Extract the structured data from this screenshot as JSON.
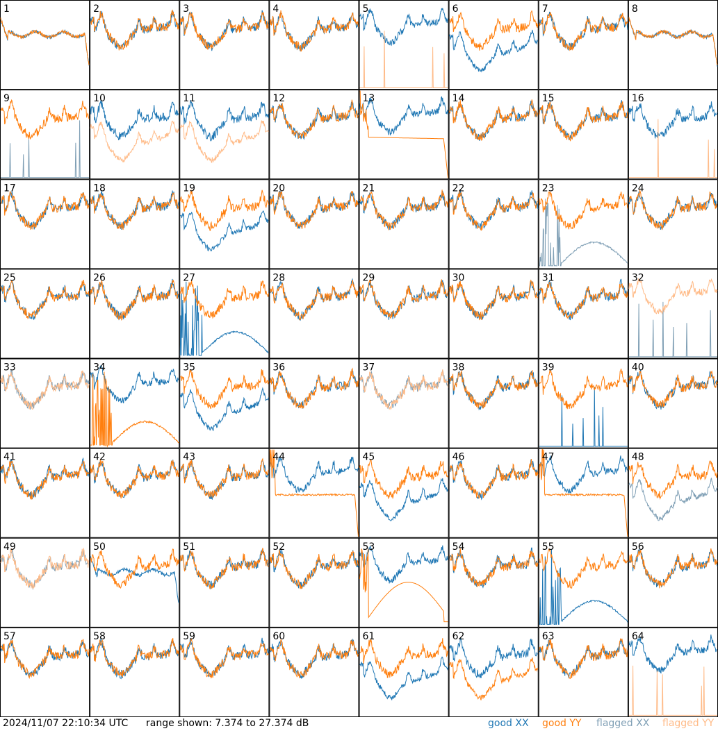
{
  "footer": {
    "timestamp": "2024/11/07 22:10:34 UTC",
    "range_text": "range shown: 7.374 to 27.374 dB",
    "legend": {
      "good_xx": "good XX",
      "good_yy": "good YY",
      "flagged_xx": "flagged XX",
      "flagged_yy": "flagged YY"
    }
  },
  "colors": {
    "good_xx": "#1f77b4",
    "good_yy": "#ff7f0e",
    "flagged_xx": "#7f9fb5",
    "flagged_yy": "#ffbb88",
    "grid_line": "#000000"
  },
  "chart_data": {
    "type": "line",
    "grid": {
      "rows": 8,
      "cols": 8
    },
    "ylim": [
      7.374,
      27.374
    ],
    "y_unit": "dB",
    "tiles": [
      {
        "id": "1",
        "xx": {
          "pattern": "flat",
          "flag": false
        },
        "yy": {
          "pattern": "flat",
          "flag": false
        }
      },
      {
        "id": "2",
        "xx": {
          "pattern": "normal",
          "flag": false
        },
        "yy": {
          "pattern": "normal",
          "flag": false
        }
      },
      {
        "id": "3",
        "xx": {
          "pattern": "normal",
          "flag": false
        },
        "yy": {
          "pattern": "normal",
          "flag": false
        }
      },
      {
        "id": "4",
        "xx": {
          "pattern": "normal",
          "flag": false
        },
        "yy": {
          "pattern": "normal",
          "flag": false
        }
      },
      {
        "id": "5",
        "xx": {
          "pattern": "high",
          "flag": false
        },
        "yy": {
          "pattern": "spikes",
          "flag": true
        }
      },
      {
        "id": "6",
        "xx": {
          "pattern": "low",
          "flag": false
        },
        "yy": {
          "pattern": "normal",
          "flag": false
        }
      },
      {
        "id": "7",
        "xx": {
          "pattern": "normal",
          "flag": false
        },
        "yy": {
          "pattern": "normal",
          "flag": false
        }
      },
      {
        "id": "8",
        "xx": {
          "pattern": "flat",
          "flag": false
        },
        "yy": {
          "pattern": "flat",
          "flag": false
        }
      },
      {
        "id": "9",
        "xx": {
          "pattern": "spikes",
          "flag": true
        },
        "yy": {
          "pattern": "normal",
          "flag": false
        }
      },
      {
        "id": "10",
        "xx": {
          "pattern": "normal",
          "flag": false
        },
        "yy": {
          "pattern": "low",
          "flag": true
        }
      },
      {
        "id": "11",
        "xx": {
          "pattern": "normal",
          "flag": false
        },
        "yy": {
          "pattern": "low",
          "flag": true
        }
      },
      {
        "id": "12",
        "xx": {
          "pattern": "normal",
          "flag": false
        },
        "yy": {
          "pattern": "normal",
          "flag": false
        }
      },
      {
        "id": "13",
        "xx": {
          "pattern": "high",
          "flag": false
        },
        "yy": {
          "pattern": "decay",
          "flag": false
        }
      },
      {
        "id": "14",
        "xx": {
          "pattern": "normal",
          "flag": false
        },
        "yy": {
          "pattern": "normal",
          "flag": false
        }
      },
      {
        "id": "15",
        "xx": {
          "pattern": "normal",
          "flag": false
        },
        "yy": {
          "pattern": "normal",
          "flag": false
        }
      },
      {
        "id": "16",
        "xx": {
          "pattern": "normal",
          "flag": false
        },
        "yy": {
          "pattern": "spikes",
          "flag": true
        }
      },
      {
        "id": "17",
        "xx": {
          "pattern": "normal",
          "flag": false
        },
        "yy": {
          "pattern": "normal",
          "flag": false
        }
      },
      {
        "id": "18",
        "xx": {
          "pattern": "normal",
          "flag": false
        },
        "yy": {
          "pattern": "normal",
          "flag": false
        }
      },
      {
        "id": "19",
        "xx": {
          "pattern": "low",
          "flag": false
        },
        "yy": {
          "pattern": "normal",
          "flag": false
        }
      },
      {
        "id": "20",
        "xx": {
          "pattern": "normal",
          "flag": false
        },
        "yy": {
          "pattern": "normal",
          "flag": false
        }
      },
      {
        "id": "21",
        "xx": {
          "pattern": "normal",
          "flag": false
        },
        "yy": {
          "pattern": "normal",
          "flag": false
        }
      },
      {
        "id": "22",
        "xx": {
          "pattern": "normal",
          "flag": false
        },
        "yy": {
          "pattern": "normal",
          "flag": false
        }
      },
      {
        "id": "23",
        "xx": {
          "pattern": "noise",
          "flag": true
        },
        "yy": {
          "pattern": "normal",
          "flag": false
        }
      },
      {
        "id": "24",
        "xx": {
          "pattern": "normal",
          "flag": false
        },
        "yy": {
          "pattern": "normal",
          "flag": false
        }
      },
      {
        "id": "25",
        "xx": {
          "pattern": "normal",
          "flag": false
        },
        "yy": {
          "pattern": "normal",
          "flag": false
        }
      },
      {
        "id": "26",
        "xx": {
          "pattern": "normal",
          "flag": false
        },
        "yy": {
          "pattern": "normal",
          "flag": false
        }
      },
      {
        "id": "27",
        "xx": {
          "pattern": "noise",
          "flag": false
        },
        "yy": {
          "pattern": "normal",
          "flag": false
        }
      },
      {
        "id": "28",
        "xx": {
          "pattern": "normal",
          "flag": false
        },
        "yy": {
          "pattern": "normal",
          "flag": false
        }
      },
      {
        "id": "29",
        "xx": {
          "pattern": "normal",
          "flag": false
        },
        "yy": {
          "pattern": "normal",
          "flag": false
        }
      },
      {
        "id": "30",
        "xx": {
          "pattern": "normal",
          "flag": false
        },
        "yy": {
          "pattern": "normal",
          "flag": false
        }
      },
      {
        "id": "31",
        "xx": {
          "pattern": "normal",
          "flag": false
        },
        "yy": {
          "pattern": "normal",
          "flag": false
        }
      },
      {
        "id": "32",
        "xx": {
          "pattern": "spikes",
          "flag": true
        },
        "yy": {
          "pattern": "high",
          "flag": true
        }
      },
      {
        "id": "33",
        "xx": {
          "pattern": "normal",
          "flag": true
        },
        "yy": {
          "pattern": "normal",
          "flag": true
        }
      },
      {
        "id": "34",
        "xx": {
          "pattern": "high",
          "flag": false
        },
        "yy": {
          "pattern": "noise",
          "flag": false
        }
      },
      {
        "id": "35",
        "xx": {
          "pattern": "low",
          "flag": false
        },
        "yy": {
          "pattern": "normal",
          "flag": false
        }
      },
      {
        "id": "36",
        "xx": {
          "pattern": "normal",
          "flag": false
        },
        "yy": {
          "pattern": "normal",
          "flag": false
        }
      },
      {
        "id": "37",
        "xx": {
          "pattern": "normal",
          "flag": true
        },
        "yy": {
          "pattern": "normal",
          "flag": true
        }
      },
      {
        "id": "38",
        "xx": {
          "pattern": "normal",
          "flag": false
        },
        "yy": {
          "pattern": "normal",
          "flag": false
        }
      },
      {
        "id": "39",
        "xx": {
          "pattern": "spikes",
          "flag": false
        },
        "yy": {
          "pattern": "normal",
          "flag": false
        }
      },
      {
        "id": "40",
        "xx": {
          "pattern": "normal",
          "flag": false
        },
        "yy": {
          "pattern": "normal",
          "flag": false
        }
      },
      {
        "id": "41",
        "xx": {
          "pattern": "normal",
          "flag": false
        },
        "yy": {
          "pattern": "normal",
          "flag": false
        }
      },
      {
        "id": "42",
        "xx": {
          "pattern": "normal",
          "flag": false
        },
        "yy": {
          "pattern": "normal",
          "flag": false
        }
      },
      {
        "id": "43",
        "xx": {
          "pattern": "normal",
          "flag": false
        },
        "yy": {
          "pattern": "normal",
          "flag": false
        }
      },
      {
        "id": "44",
        "xx": {
          "pattern": "high",
          "flag": false
        },
        "yy": {
          "pattern": "flatdrop",
          "flag": false
        }
      },
      {
        "id": "45",
        "xx": {
          "pattern": "low",
          "flag": false
        },
        "yy": {
          "pattern": "normal",
          "flag": false
        }
      },
      {
        "id": "46",
        "xx": {
          "pattern": "normal",
          "flag": false
        },
        "yy": {
          "pattern": "normal",
          "flag": false
        }
      },
      {
        "id": "47",
        "xx": {
          "pattern": "high",
          "flag": false
        },
        "yy": {
          "pattern": "flatdrop",
          "flag": false
        }
      },
      {
        "id": "48",
        "xx": {
          "pattern": "low",
          "flag": true
        },
        "yy": {
          "pattern": "normal",
          "flag": false
        }
      },
      {
        "id": "49",
        "xx": {
          "pattern": "normal",
          "flag": true
        },
        "yy": {
          "pattern": "normal",
          "flag": true
        }
      },
      {
        "id": "50",
        "xx": {
          "pattern": "flat",
          "flag": false
        },
        "yy": {
          "pattern": "normal",
          "flag": false
        }
      },
      {
        "id": "51",
        "xx": {
          "pattern": "normal",
          "flag": false
        },
        "yy": {
          "pattern": "normal",
          "flag": false
        }
      },
      {
        "id": "52",
        "xx": {
          "pattern": "normal",
          "flag": false
        },
        "yy": {
          "pattern": "normal",
          "flag": false
        }
      },
      {
        "id": "53",
        "xx": {
          "pattern": "high",
          "flag": false
        },
        "yy": {
          "pattern": "hump",
          "flag": false
        }
      },
      {
        "id": "54",
        "xx": {
          "pattern": "normal",
          "flag": false
        },
        "yy": {
          "pattern": "normal",
          "flag": false
        }
      },
      {
        "id": "55",
        "xx": {
          "pattern": "noise",
          "flag": false
        },
        "yy": {
          "pattern": "normal",
          "flag": false
        }
      },
      {
        "id": "56",
        "xx": {
          "pattern": "normal",
          "flag": false
        },
        "yy": {
          "pattern": "normal",
          "flag": false
        }
      },
      {
        "id": "57",
        "xx": {
          "pattern": "normal",
          "flag": false
        },
        "yy": {
          "pattern": "normal",
          "flag": false
        }
      },
      {
        "id": "58",
        "xx": {
          "pattern": "normal",
          "flag": false
        },
        "yy": {
          "pattern": "normal",
          "flag": false
        }
      },
      {
        "id": "59",
        "xx": {
          "pattern": "normal",
          "flag": false
        },
        "yy": {
          "pattern": "normal",
          "flag": false
        }
      },
      {
        "id": "60",
        "xx": {
          "pattern": "normal",
          "flag": false
        },
        "yy": {
          "pattern": "normal",
          "flag": false
        }
      },
      {
        "id": "61",
        "xx": {
          "pattern": "low",
          "flag": false
        },
        "yy": {
          "pattern": "normal",
          "flag": false
        }
      },
      {
        "id": "62",
        "xx": {
          "pattern": "normal",
          "flag": false
        },
        "yy": {
          "pattern": "low",
          "flag": false
        }
      },
      {
        "id": "63",
        "xx": {
          "pattern": "normal",
          "flag": false
        },
        "yy": {
          "pattern": "normal",
          "flag": false
        }
      },
      {
        "id": "64",
        "xx": {
          "pattern": "high",
          "flag": false
        },
        "yy": {
          "pattern": "spikes",
          "flag": true
        }
      }
    ]
  }
}
